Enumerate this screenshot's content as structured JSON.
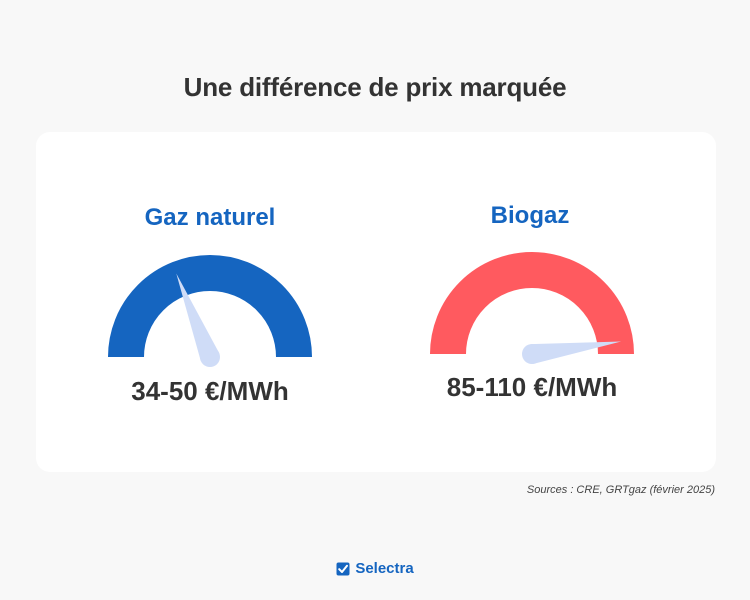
{
  "title": "Une différence de prix marquée",
  "gauges": [
    {
      "label": "Gaz naturel",
      "value": "34-50 €/MWh",
      "color": "#1565c0",
      "needle_angle_deg": 112
    },
    {
      "label": "Biogaz",
      "value": "85-110 €/MWh",
      "color": "#ff5a5f",
      "needle_angle_deg": 8
    }
  ],
  "needle_color": "#cfdcf7",
  "source": "Sources : CRE, GRTgaz (février 2025)",
  "brand": {
    "name": "Selectra",
    "icon": "checkmark-logo-icon"
  }
}
